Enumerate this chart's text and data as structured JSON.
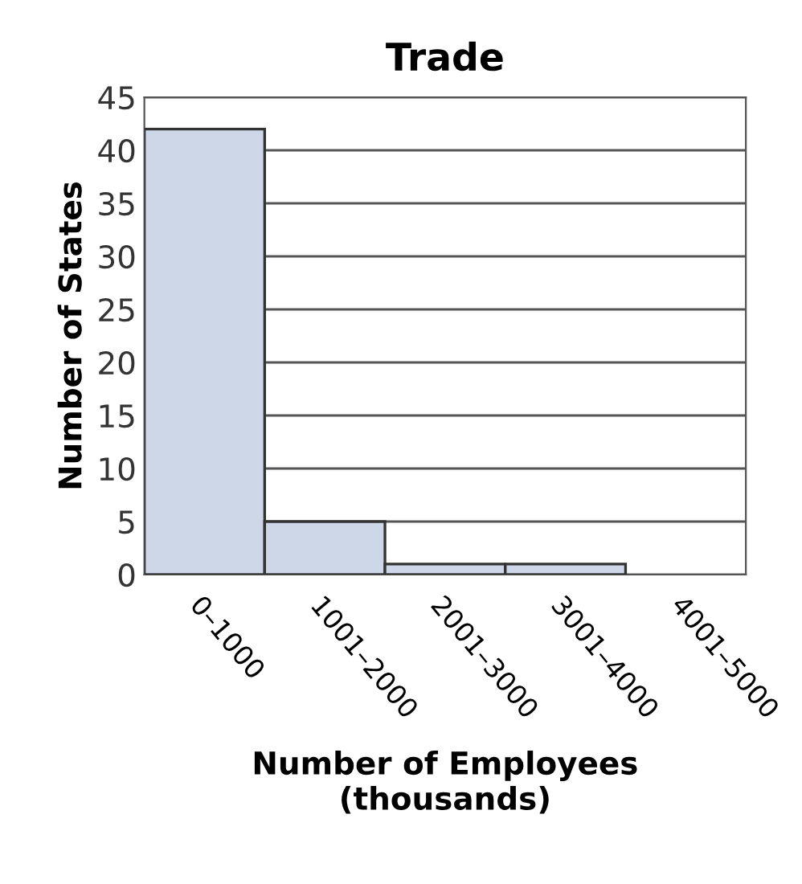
{
  "chart_data": {
    "type": "bar",
    "title": "Trade",
    "xlabel": "Number of Employees\n(thousands)",
    "ylabel": "Number of States",
    "categories": [
      "0–1000",
      "1001–2000",
      "2001–3000",
      "3001–4000",
      "4001–5000"
    ],
    "values": [
      42,
      5,
      1,
      1,
      0
    ],
    "color": "#cdd7e8",
    "ylim": [
      0,
      45
    ],
    "yticks": [
      0,
      5,
      10,
      15,
      20,
      25,
      30,
      35,
      40,
      45
    ],
    "grid": "y"
  }
}
